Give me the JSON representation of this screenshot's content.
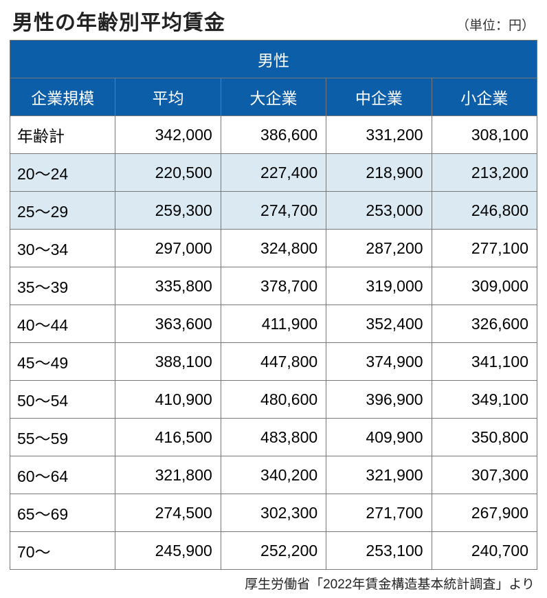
{
  "title": "男性の年齢別平均賃金",
  "unit": "（単位：円）",
  "header_top": "男性",
  "columns": [
    "企業規模",
    "平均",
    "大企業",
    "中企業",
    "小企業"
  ],
  "rows": [
    {
      "label": "年齢計",
      "cells": [
        "342,000",
        "386,600",
        "331,200",
        "308,100"
      ],
      "highlight": false
    },
    {
      "label": "20〜24",
      "cells": [
        "220,500",
        "227,400",
        "218,900",
        "213,200"
      ],
      "highlight": true
    },
    {
      "label": "25〜29",
      "cells": [
        "259,300",
        "274,700",
        "253,000",
        "246,800"
      ],
      "highlight": true
    },
    {
      "label": "30〜34",
      "cells": [
        "297,000",
        "324,800",
        "287,200",
        "277,100"
      ],
      "highlight": false
    },
    {
      "label": "35〜39",
      "cells": [
        "335,800",
        "378,700",
        "319,000",
        "309,000"
      ],
      "highlight": false
    },
    {
      "label": "40〜44",
      "cells": [
        "363,600",
        "411,900",
        "352,400",
        "326,600"
      ],
      "highlight": false
    },
    {
      "label": "45〜49",
      "cells": [
        "388,100",
        "447,800",
        "374,900",
        "341,100"
      ],
      "highlight": false
    },
    {
      "label": "50〜54",
      "cells": [
        "410,900",
        "480,600",
        "396,900",
        "349,100"
      ],
      "highlight": false
    },
    {
      "label": "55〜59",
      "cells": [
        "416,500",
        "483,800",
        "409,900",
        "350,800"
      ],
      "highlight": false
    },
    {
      "label": "60〜64",
      "cells": [
        "321,800",
        "340,200",
        "321,900",
        "307,300"
      ],
      "highlight": false
    },
    {
      "label": "65〜69",
      "cells": [
        "274,500",
        "302,300",
        "271,700",
        "267,900"
      ],
      "highlight": false
    },
    {
      "label": "70〜",
      "cells": [
        "245,900",
        "252,200",
        "253,100",
        "240,700"
      ],
      "highlight": false
    }
  ],
  "source": "厚生労働省「2022年賃金構造基本統計調査」より",
  "style": {
    "type": "table",
    "header_bg": "#0c5ea8",
    "header_fg": "#ffffff",
    "highlight_bg": "#dbe9f2",
    "border_color": "#777777",
    "title_fontsize": 30,
    "cell_fontsize": 23,
    "unit_fontsize": 19,
    "source_fontsize": 19,
    "col_count": 5,
    "col_widths_pct": [
      20,
      20,
      20,
      20,
      20
    ],
    "numeric_align": "right",
    "label_align": "left"
  }
}
